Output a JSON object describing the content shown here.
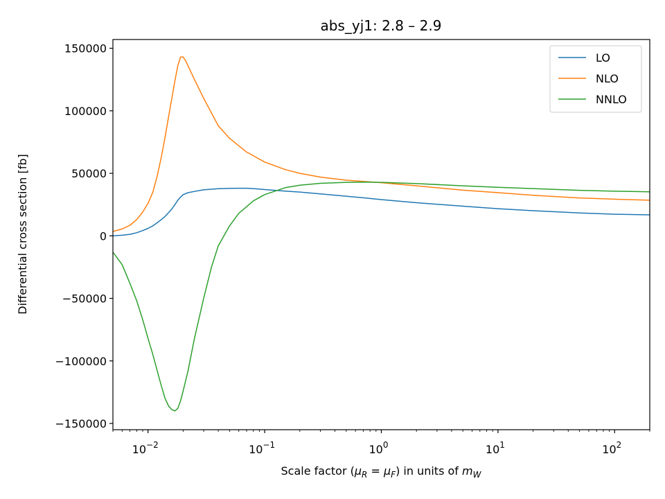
{
  "chart_data": {
    "type": "line",
    "title": "abs_yj1: 2.8 – 2.9",
    "xlabel": {
      "prefix": "Scale factor (",
      "mu": "μ",
      "R": "R",
      "eq": " = ",
      "F": "F",
      "suffix": ") in units of ",
      "m": "m",
      "W": "W"
    },
    "ylabel": "Differential cross section [fb]",
    "xscale": "log",
    "xlim": [
      0.005,
      200
    ],
    "ylim": [
      -155000,
      157000
    ],
    "grid": false,
    "legend_position": "top-right",
    "x_ticks": [
      {
        "base": "10",
        "exp": "−2",
        "value": 0.01
      },
      {
        "base": "10",
        "exp": "−1",
        "value": 0.1
      },
      {
        "base": "10",
        "exp": "0",
        "value": 1
      },
      {
        "base": "10",
        "exp": "1",
        "value": 10
      },
      {
        "base": "10",
        "exp": "2",
        "value": 100
      }
    ],
    "y_ticks": [
      {
        "label": "150000",
        "value": 150000
      },
      {
        "label": "100000",
        "value": 100000
      },
      {
        "label": "50000",
        "value": 50000
      },
      {
        "label": "0",
        "value": 0
      },
      {
        "label": "−50000",
        "value": -50000
      },
      {
        "label": "−100000",
        "value": -100000
      },
      {
        "label": "−150000",
        "value": -150000
      }
    ],
    "series": [
      {
        "name": "LO",
        "color": "#1f77b4",
        "points": [
          [
            0.005,
            0
          ],
          [
            0.006,
            500
          ],
          [
            0.007,
            1200
          ],
          [
            0.008,
            2500
          ],
          [
            0.009,
            4200
          ],
          [
            0.01,
            6000
          ],
          [
            0.011,
            8000
          ],
          [
            0.012,
            10500
          ],
          [
            0.013,
            13000
          ],
          [
            0.014,
            15500
          ],
          [
            0.015,
            18500
          ],
          [
            0.016,
            21500
          ],
          [
            0.017,
            25000
          ],
          [
            0.018,
            28500
          ],
          [
            0.019,
            31000
          ],
          [
            0.02,
            33000
          ],
          [
            0.022,
            34500
          ],
          [
            0.025,
            35500
          ],
          [
            0.03,
            36800
          ],
          [
            0.04,
            37700
          ],
          [
            0.05,
            38000
          ],
          [
            0.06,
            38100
          ],
          [
            0.07,
            38050
          ],
          [
            0.08,
            37800
          ],
          [
            0.1,
            37000
          ],
          [
            0.15,
            35800
          ],
          [
            0.2,
            35000
          ],
          [
            0.3,
            33600
          ],
          [
            0.5,
            31700
          ],
          [
            0.7,
            30400
          ],
          [
            1,
            29000
          ],
          [
            2,
            26500
          ],
          [
            5,
            23700
          ],
          [
            10,
            21700
          ],
          [
            20,
            20100
          ],
          [
            50,
            18300
          ],
          [
            100,
            17300
          ],
          [
            200,
            16800
          ]
        ]
      },
      {
        "name": "NLO",
        "color": "#ff7f0e",
        "points": [
          [
            0.005,
            3500
          ],
          [
            0.006,
            5500
          ],
          [
            0.007,
            8500
          ],
          [
            0.008,
            13000
          ],
          [
            0.009,
            19000
          ],
          [
            0.01,
            26000
          ],
          [
            0.011,
            35000
          ],
          [
            0.012,
            48000
          ],
          [
            0.013,
            63000
          ],
          [
            0.014,
            79000
          ],
          [
            0.015,
            95000
          ],
          [
            0.016,
            110000
          ],
          [
            0.017,
            124000
          ],
          [
            0.018,
            136000
          ],
          [
            0.019,
            143000
          ],
          [
            0.02,
            143000
          ],
          [
            0.021,
            140000
          ],
          [
            0.022,
            136000
          ],
          [
            0.025,
            125000
          ],
          [
            0.03,
            110000
          ],
          [
            0.04,
            88000
          ],
          [
            0.05,
            78000
          ],
          [
            0.07,
            67000
          ],
          [
            0.1,
            59000
          ],
          [
            0.15,
            53000
          ],
          [
            0.2,
            50000
          ],
          [
            0.3,
            47000
          ],
          [
            0.5,
            44500
          ],
          [
            0.7,
            43500
          ],
          [
            1,
            42500
          ],
          [
            2,
            40000
          ],
          [
            5,
            36500
          ],
          [
            10,
            34500
          ],
          [
            20,
            32500
          ],
          [
            50,
            30300
          ],
          [
            100,
            29300
          ],
          [
            200,
            28500
          ]
        ]
      },
      {
        "name": "NNLO",
        "color": "#2ca02c",
        "points": [
          [
            0.005,
            -13000
          ],
          [
            0.006,
            -23000
          ],
          [
            0.007,
            -38000
          ],
          [
            0.008,
            -52000
          ],
          [
            0.009,
            -67000
          ],
          [
            0.01,
            -82000
          ],
          [
            0.011,
            -95000
          ],
          [
            0.012,
            -108000
          ],
          [
            0.013,
            -120000
          ],
          [
            0.014,
            -130000
          ],
          [
            0.015,
            -136000
          ],
          [
            0.016,
            -139000
          ],
          [
            0.017,
            -140000
          ],
          [
            0.018,
            -138000
          ],
          [
            0.019,
            -132000
          ],
          [
            0.02,
            -124000
          ],
          [
            0.022,
            -108000
          ],
          [
            0.025,
            -82000
          ],
          [
            0.03,
            -50000
          ],
          [
            0.035,
            -25000
          ],
          [
            0.04,
            -8000
          ],
          [
            0.05,
            8000
          ],
          [
            0.06,
            18000
          ],
          [
            0.08,
            28000
          ],
          [
            0.1,
            33000
          ],
          [
            0.15,
            38500
          ],
          [
            0.2,
            40500
          ],
          [
            0.3,
            42000
          ],
          [
            0.5,
            42800
          ],
          [
            0.7,
            43000
          ],
          [
            1,
            42800
          ],
          [
            2,
            41800
          ],
          [
            5,
            40000
          ],
          [
            10,
            38800
          ],
          [
            20,
            37800
          ],
          [
            50,
            36400
          ],
          [
            100,
            35700
          ],
          [
            200,
            35200
          ]
        ]
      }
    ]
  }
}
